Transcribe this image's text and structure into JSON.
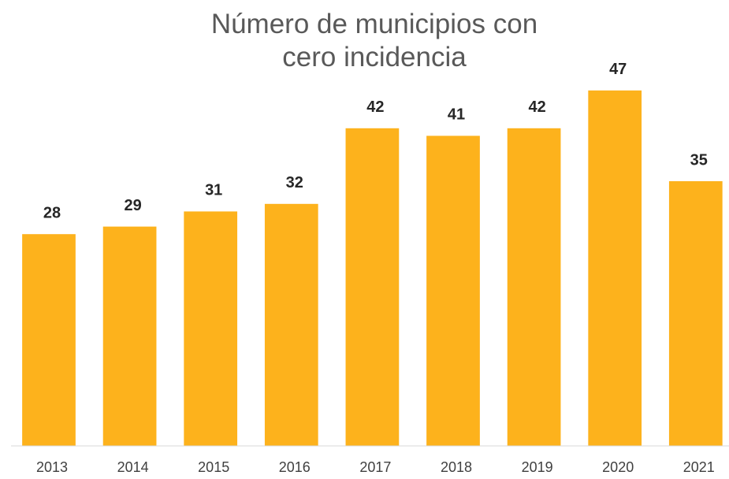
{
  "chart_data": {
    "type": "bar",
    "title": "Número de municipios con cero incidencia",
    "categories": [
      "2013",
      "2014",
      "2015",
      "2016",
      "2017",
      "2018",
      "2019",
      "2020",
      "2021"
    ],
    "values": [
      28,
      29,
      31,
      32,
      42,
      41,
      42,
      47,
      35
    ],
    "color": "#fdb21c",
    "ylim": [
      0,
      50
    ]
  }
}
